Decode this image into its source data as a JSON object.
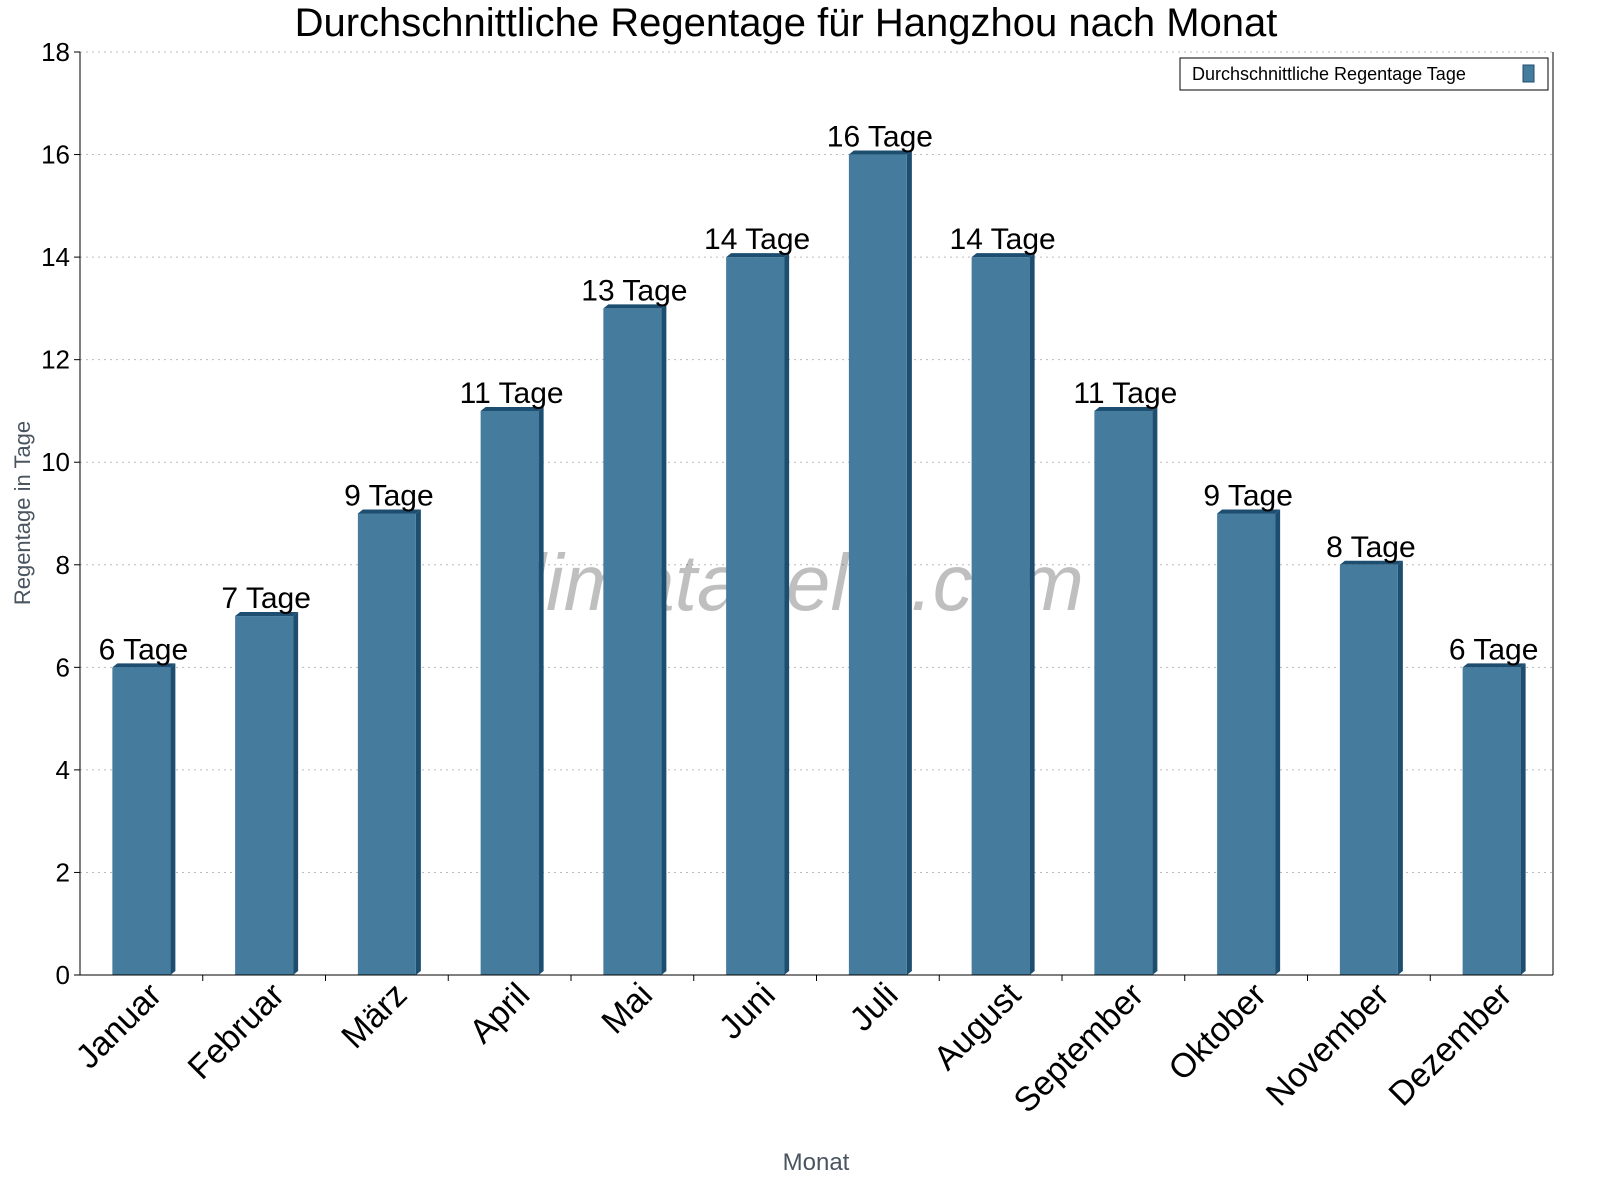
{
  "chart_data": {
    "type": "bar",
    "title": "Durchschnittliche Regentage für Hangzhou nach Monat",
    "xlabel": "Monat",
    "ylabel": "Regentage in Tage",
    "categories": [
      "Januar",
      "Februar",
      "März",
      "April",
      "Mai",
      "Juni",
      "Juli",
      "August",
      "September",
      "Oktober",
      "November",
      "Dezember"
    ],
    "series": [
      {
        "name": "Durchschnittliche Regentage Tage",
        "values": [
          6,
          7,
          9,
          11,
          13,
          14,
          16,
          14,
          11,
          9,
          8,
          6
        ],
        "color": "#457b9d",
        "edge_color": "#1d4e70"
      }
    ],
    "data_labels": [
      "6 Tage",
      "7 Tage",
      "9 Tage",
      "11 Tage",
      "13 Tage",
      "14 Tage",
      "16 Tage",
      "14 Tage",
      "11 Tage",
      "9 Tage",
      "8 Tage",
      "6 Tage"
    ],
    "ylim": [
      0,
      18
    ],
    "yticks": [
      0,
      2,
      4,
      6,
      8,
      10,
      12,
      14,
      16,
      18
    ],
    "grid": true,
    "legend_position": "top-right",
    "watermark": "klimatabelle.com"
  }
}
